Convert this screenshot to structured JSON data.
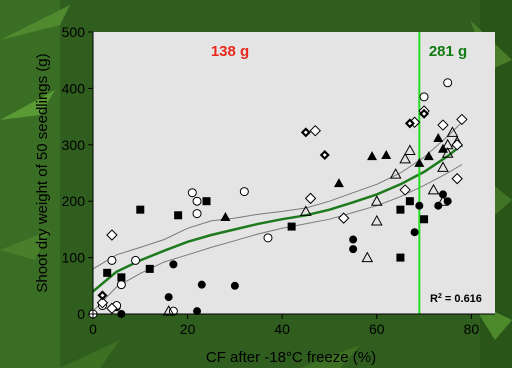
{
  "chart_data": {
    "type": "scatter",
    "title": "",
    "xlabel": "CF after -18°C freeze (%)",
    "ylabel": "Shoot dry weight of 50 seedlings (g)",
    "xlim": [
      0,
      85
    ],
    "ylim": [
      0,
      500
    ],
    "x_ticks": [
      0,
      20,
      40,
      60,
      80
    ],
    "y_ticks": [
      0,
      100,
      200,
      300,
      400,
      500
    ],
    "grid": false,
    "legend": "none",
    "colors": {
      "plot_bg": "#e4e4e4",
      "marker": "#000000",
      "fit_line": "#1d7a1d",
      "ci_line": "#7a7a7a",
      "threshold_line": "#22dd22",
      "left_label": "#e8281e",
      "right_label": "#117a11"
    },
    "threshold_x": 69,
    "annotations": {
      "left_region": "138 g",
      "right_region": "281 g",
      "r2_prefix": "R",
      "r2_sup": "2",
      "r2_value": " = 0.616"
    },
    "series": [
      {
        "marker": "filled-circle",
        "points": [
          [
            5,
            12
          ],
          [
            6,
            0
          ],
          [
            16,
            30
          ],
          [
            17,
            88
          ],
          [
            23,
            52
          ],
          [
            30,
            50
          ],
          [
            55,
            115
          ],
          [
            55,
            132
          ],
          [
            68,
            145
          ],
          [
            69,
            192
          ],
          [
            73,
            192
          ],
          [
            74,
            212
          ],
          [
            75,
            200
          ],
          [
            22,
            5
          ]
        ]
      },
      {
        "marker": "open-circle",
        "points": [
          [
            0,
            0
          ],
          [
            2,
            15
          ],
          [
            4,
            95
          ],
          [
            6,
            52
          ],
          [
            9,
            95
          ],
          [
            17,
            5
          ],
          [
            21,
            215
          ],
          [
            22,
            178
          ],
          [
            22,
            200
          ],
          [
            32,
            217
          ],
          [
            37,
            135
          ],
          [
            70,
            385
          ],
          [
            75,
            410
          ],
          [
            5,
            15
          ]
        ]
      },
      {
        "marker": "filled-square",
        "points": [
          [
            3,
            73
          ],
          [
            6,
            65
          ],
          [
            10,
            185
          ],
          [
            12,
            80
          ],
          [
            18,
            175
          ],
          [
            24,
            200
          ],
          [
            42,
            155
          ],
          [
            65,
            100
          ],
          [
            65,
            185
          ],
          [
            67,
            200
          ],
          [
            70,
            168
          ]
        ]
      },
      {
        "marker": "filled-triangle",
        "points": [
          [
            28,
            172
          ],
          [
            52,
            232
          ],
          [
            59,
            280
          ],
          [
            62,
            282
          ],
          [
            69,
            268
          ],
          [
            71,
            280
          ],
          [
            73,
            312
          ],
          [
            74,
            293
          ]
        ]
      },
      {
        "marker": "open-triangle",
        "points": [
          [
            45,
            182
          ],
          [
            58,
            100
          ],
          [
            60,
            200
          ],
          [
            60,
            165
          ],
          [
            64,
            248
          ],
          [
            66,
            275
          ],
          [
            67,
            290
          ],
          [
            72,
            220
          ],
          [
            74,
            200
          ],
          [
            74,
            260
          ],
          [
            75,
            285
          ],
          [
            75,
            300
          ],
          [
            76,
            322
          ],
          [
            77,
            305
          ],
          [
            16,
            5
          ]
        ]
      },
      {
        "marker": "open-diamond",
        "points": [
          [
            2,
            20
          ],
          [
            4,
            140
          ],
          [
            46,
            205
          ],
          [
            47,
            325
          ],
          [
            53,
            170
          ],
          [
            66,
            220
          ],
          [
            68,
            340
          ],
          [
            70,
            360
          ],
          [
            74,
            335
          ],
          [
            77,
            300
          ],
          [
            77,
            240
          ],
          [
            78,
            345
          ],
          [
            4,
            10
          ]
        ]
      },
      {
        "marker": "filled-diamond-inner",
        "points": [
          [
            2,
            33
          ],
          [
            45,
            322
          ],
          [
            49,
            282
          ],
          [
            67,
            338
          ],
          [
            70,
            355
          ]
        ]
      }
    ],
    "fit_curve": {
      "x": [
        0,
        5,
        10,
        15,
        20,
        25,
        30,
        35,
        40,
        45,
        50,
        55,
        60,
        65,
        70,
        75,
        78
      ],
      "y": [
        40,
        75,
        95,
        112,
        128,
        140,
        150,
        160,
        168,
        175,
        185,
        198,
        212,
        230,
        252,
        280,
        300
      ]
    },
    "ci_upper": {
      "x": [
        0,
        5,
        10,
        15,
        20,
        25,
        30,
        35,
        40,
        45,
        50,
        55,
        60,
        65,
        70,
        75,
        78
      ],
      "y": [
        80,
        105,
        118,
        132,
        152,
        165,
        170,
        177,
        182,
        188,
        200,
        215,
        230,
        250,
        278,
        315,
        340
      ]
    },
    "ci_lower": {
      "x": [
        0,
        5,
        10,
        15,
        20,
        25,
        30,
        35,
        40,
        45,
        50,
        55,
        60,
        65,
        70,
        75,
        78
      ],
      "y": [
        5,
        48,
        72,
        92,
        105,
        118,
        130,
        142,
        152,
        160,
        168,
        180,
        192,
        208,
        228,
        250,
        265
      ]
    }
  }
}
